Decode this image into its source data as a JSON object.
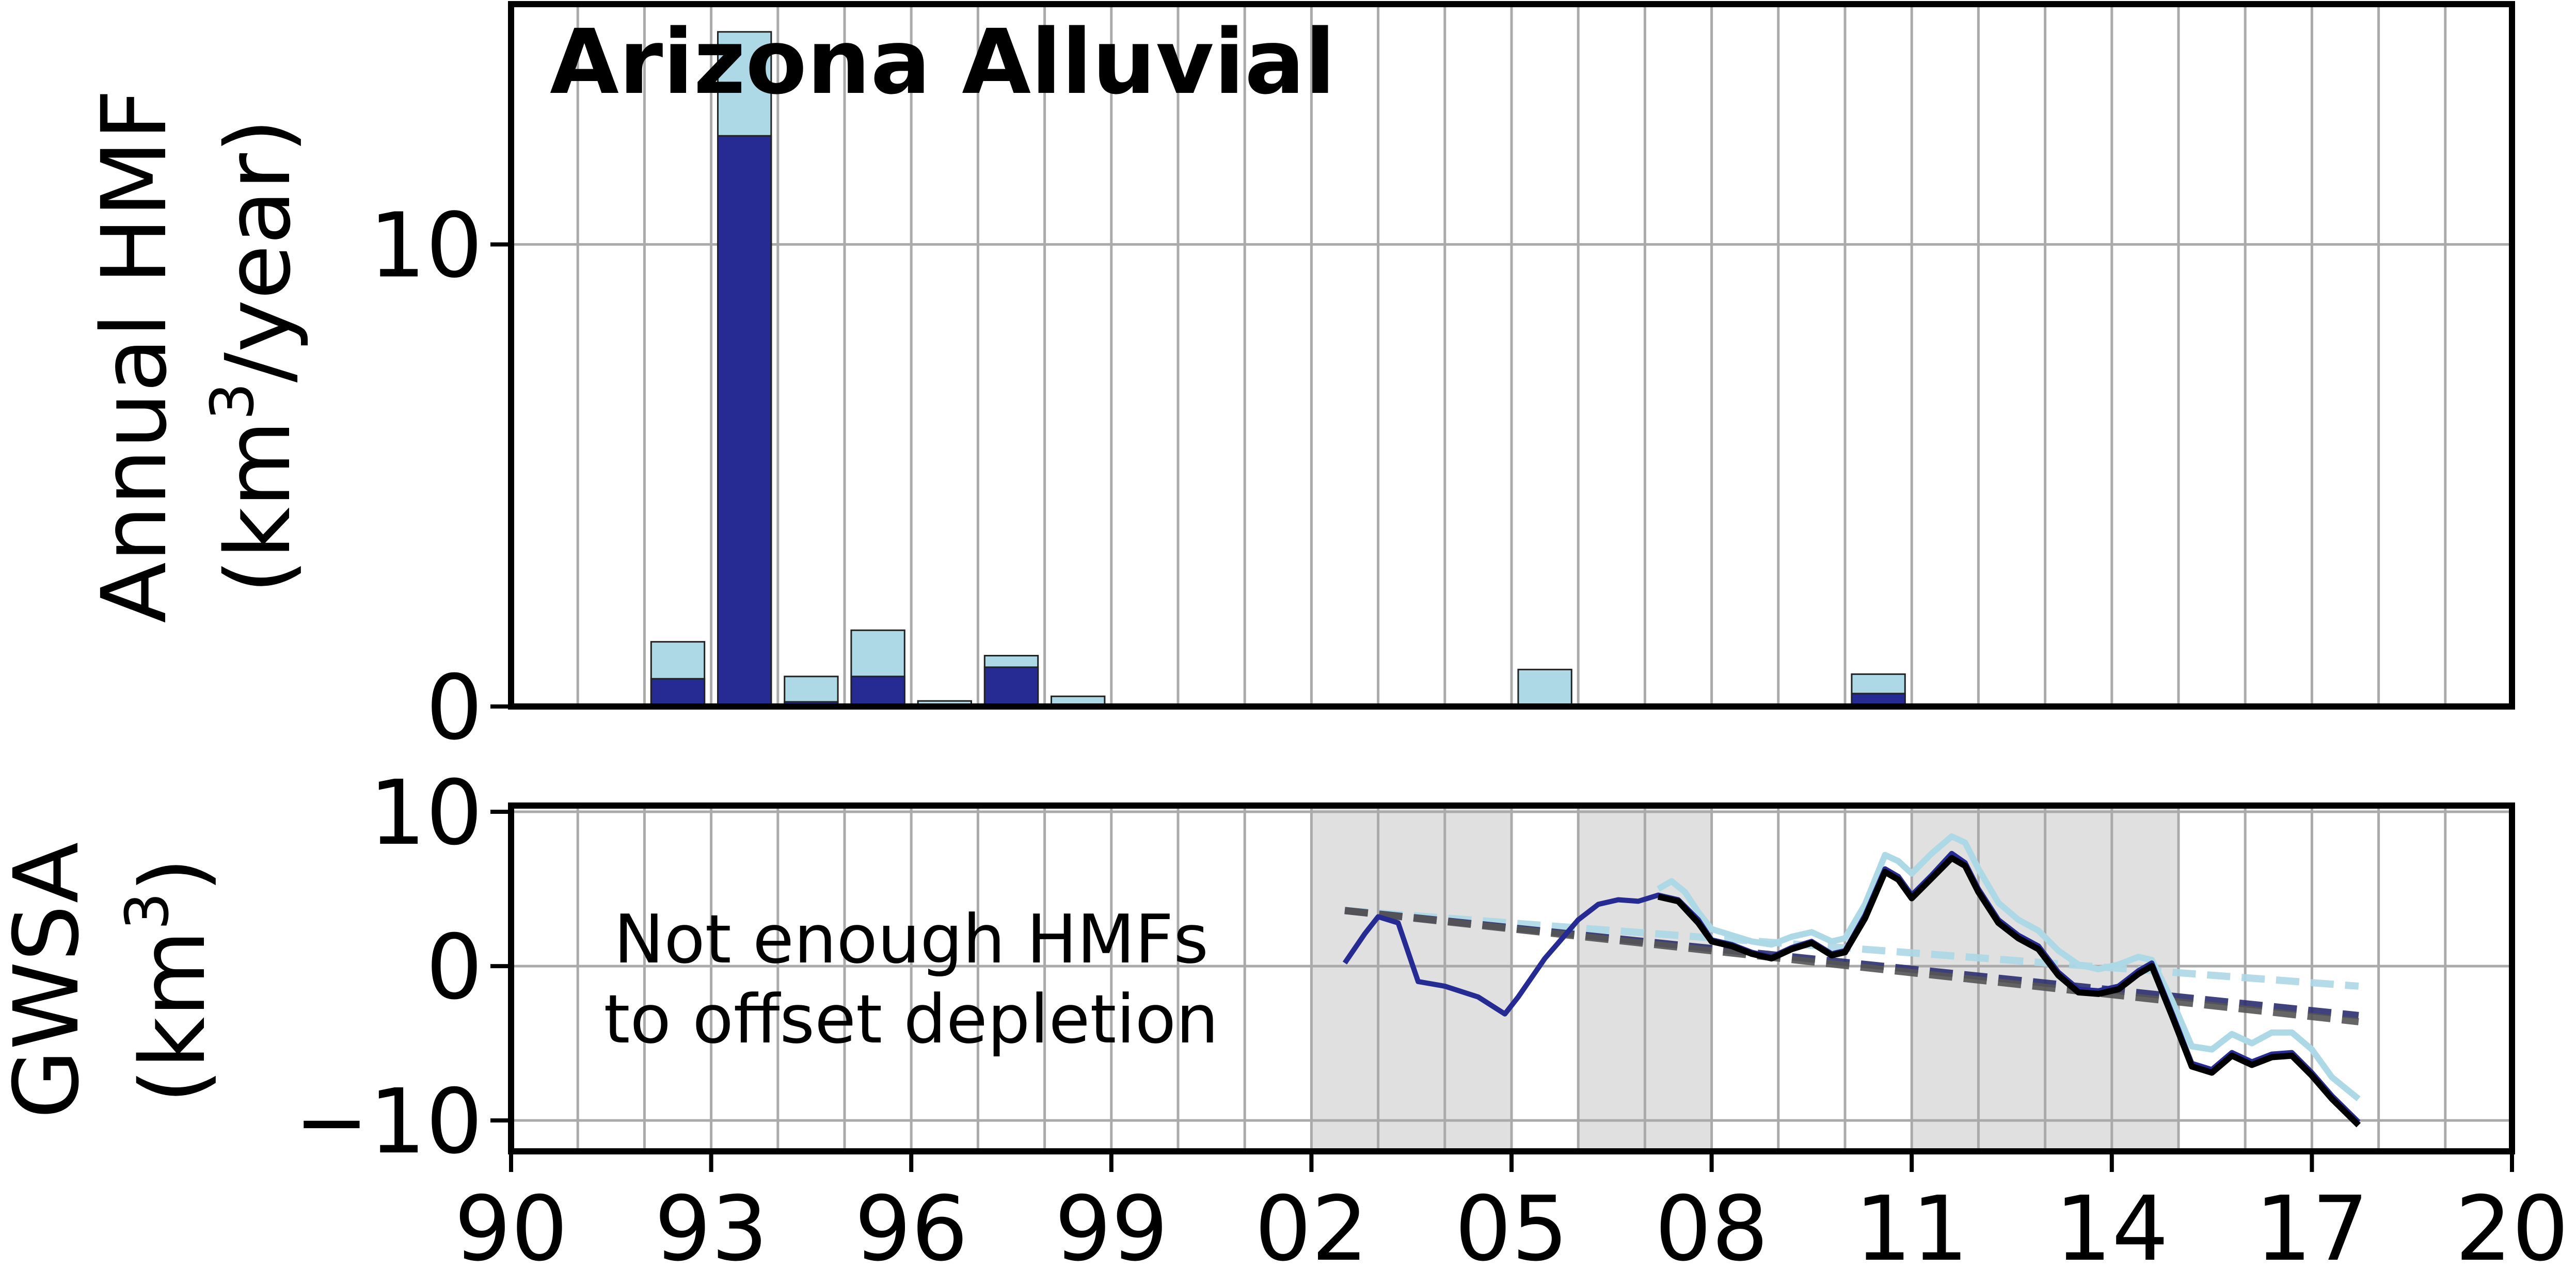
{
  "chart_data": [
    {
      "type": "bar",
      "title": "Arizona Alluvial",
      "ylabel_line1": "Annual HMF",
      "ylabel_line2_pre": "(km",
      "ylabel_sup": "3",
      "ylabel_line2_post": "/year)",
      "ylim": [
        0,
        15.2
      ],
      "yticks": [
        0,
        10
      ],
      "grid": true,
      "categories": [
        1991,
        1992,
        1993,
        1994,
        1995,
        1996,
        1997,
        1998,
        1999,
        2005,
        2010
      ],
      "series": [
        {
          "key": "total",
          "color": "#add8e6",
          "values": [
            0.05,
            1.4,
            14.6,
            0.65,
            1.65,
            0.12,
            1.1,
            0.22,
            0,
            0.8,
            0.7
          ]
        },
        {
          "key": "dark",
          "color": "#262b94",
          "values": [
            0.0,
            0.6,
            12.35,
            0.1,
            0.65,
            0.0,
            0.85,
            0.0,
            0,
            0.0,
            0.28
          ]
        }
      ]
    },
    {
      "type": "line",
      "ylabel_line1": "GWSA",
      "ylabel_pre": "(km",
      "ylabel_sup": "3",
      "ylabel_post": ")",
      "ylim": [
        -12,
        10.4
      ],
      "yticks": [
        10,
        0,
        -10
      ],
      "ytick_labels": [
        "10",
        "0",
        "−10"
      ],
      "grid": true,
      "annotation": [
        "Not enough HMFs",
        "to offset depletion"
      ],
      "shaded_periods": [
        [
          2002,
          2005
        ],
        [
          2006,
          2008
        ],
        [
          2011,
          2015
        ]
      ],
      "series": [
        {
          "key": "light",
          "color": "#add8e6",
          "x": [
            2007.2,
            2007.4,
            2007.6,
            2007.8,
            2008.0,
            2008.3,
            2008.6,
            2008.9,
            2009.2,
            2009.5,
            2009.8,
            2010.0,
            2010.3,
            2010.6,
            2010.8,
            2011.0,
            2011.3,
            2011.6,
            2011.8,
            2012.0,
            2012.3,
            2012.6,
            2012.9,
            2013.2,
            2013.5,
            2013.8,
            2014.1,
            2014.4,
            2014.6,
            2014.9,
            2015.2,
            2015.5,
            2015.8,
            2016.1,
            2016.4,
            2016.7,
            2017.0,
            2017.3,
            2017.7
          ],
          "y": [
            5.0,
            5.5,
            4.8,
            3.5,
            2.4,
            2.0,
            1.6,
            1.4,
            1.9,
            2.2,
            1.6,
            1.8,
            4.0,
            7.2,
            6.8,
            6.0,
            7.3,
            8.4,
            8.0,
            6.3,
            4.1,
            3.0,
            2.3,
            1.0,
            0.1,
            -0.2,
            0.1,
            0.6,
            0.4,
            -2.2,
            -5.2,
            -5.4,
            -4.4,
            -5.0,
            -4.3,
            -4.3,
            -5.4,
            -7.2,
            -8.6
          ]
        },
        {
          "key": "mid",
          "color": "#262b94",
          "x": [
            2002.5,
            2002.8,
            2003.0,
            2003.3,
            2003.6,
            2004.0,
            2004.5,
            2004.9,
            2005.1,
            2005.5,
            2005.8,
            2006.0,
            2006.3,
            2006.6,
            2006.9,
            2007.2,
            2007.5,
            2007.8,
            2008.0,
            2008.3,
            2008.6,
            2008.9,
            2009.2,
            2009.5,
            2009.8,
            2010.0,
            2010.3,
            2010.6,
            2010.8,
            2011.0,
            2011.3,
            2011.6,
            2011.8,
            2012.0,
            2012.3,
            2012.6,
            2012.9,
            2013.2,
            2013.5,
            2013.8,
            2014.1,
            2014.4,
            2014.6,
            2014.9,
            2015.2,
            2015.5,
            2015.8,
            2016.1,
            2016.4,
            2016.7,
            2017.0,
            2017.3,
            2017.7
          ],
          "y": [
            0.2,
            2.1,
            3.2,
            2.8,
            -1.0,
            -1.3,
            -2.0,
            -3.1,
            -2.0,
            0.5,
            2.0,
            3.0,
            4.0,
            4.3,
            4.2,
            4.6,
            4.3,
            3.0,
            1.7,
            1.4,
            0.9,
            0.6,
            1.2,
            1.6,
            0.8,
            1.0,
            3.3,
            6.3,
            5.8,
            4.6,
            5.9,
            7.3,
            6.7,
            5.0,
            3.0,
            2.0,
            1.3,
            -0.4,
            -1.5,
            -1.6,
            -1.3,
            -0.3,
            0.2,
            -3.0,
            -6.3,
            -6.7,
            -5.6,
            -6.2,
            -5.7,
            -5.6,
            -6.9,
            -8.4,
            -10.1
          ]
        },
        {
          "key": "dark",
          "color": "#000000",
          "x": [
            2007.2,
            2007.5,
            2007.8,
            2008.0,
            2008.3,
            2008.6,
            2008.9,
            2009.2,
            2009.5,
            2009.8,
            2010.0,
            2010.3,
            2010.6,
            2010.8,
            2011.0,
            2011.3,
            2011.6,
            2011.8,
            2012.0,
            2012.3,
            2012.6,
            2012.9,
            2013.2,
            2013.5,
            2013.8,
            2014.1,
            2014.4,
            2014.6,
            2014.9,
            2015.2,
            2015.5,
            2015.8,
            2016.1,
            2016.4,
            2016.7,
            2017.0,
            2017.3,
            2017.7
          ],
          "y": [
            4.5,
            4.2,
            2.8,
            1.6,
            1.3,
            0.8,
            0.5,
            1.1,
            1.5,
            0.7,
            0.9,
            3.1,
            6.1,
            5.6,
            4.4,
            5.7,
            7.0,
            6.5,
            4.8,
            2.8,
            1.8,
            1.1,
            -0.6,
            -1.7,
            -1.8,
            -1.5,
            -0.5,
            0.0,
            -3.2,
            -6.5,
            -6.9,
            -5.8,
            -6.4,
            -5.9,
            -5.8,
            -7.1,
            -8.6,
            -10.3
          ]
        }
      ],
      "trend_lines": [
        {
          "color": "#add8e6",
          "x": [
            2002.5,
            2017.7
          ],
          "y": [
            3.6,
            -1.3
          ]
        },
        {
          "color": "#2b2e6e",
          "x": [
            2002.5,
            2017.7
          ],
          "y": [
            3.6,
            -3.2
          ]
        },
        {
          "color": "#555555",
          "x": [
            2002.5,
            2017.7
          ],
          "y": [
            3.6,
            -3.6
          ]
        }
      ],
      "xlim": [
        1990,
        2020
      ],
      "xticks": [
        1990,
        1993,
        1996,
        1999,
        2002,
        2005,
        2008,
        2011,
        2014,
        2017,
        2020
      ],
      "xtick_labels": [
        "90",
        "93",
        "96",
        "99",
        "02",
        "05",
        "08",
        "11",
        "14",
        "17",
        "20"
      ]
    }
  ]
}
